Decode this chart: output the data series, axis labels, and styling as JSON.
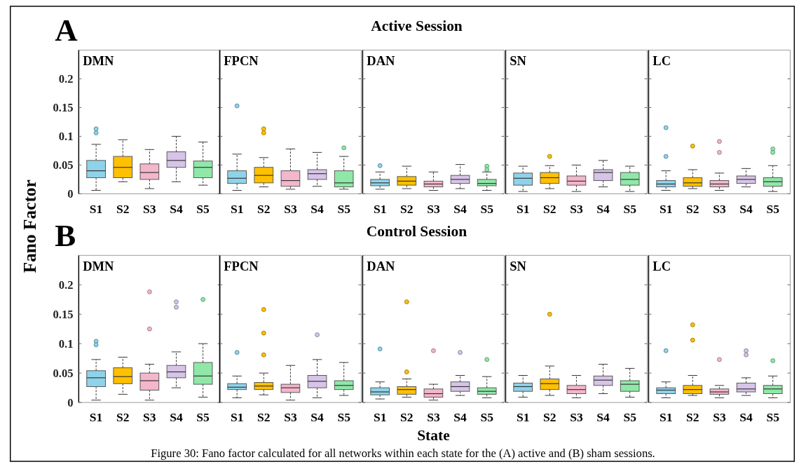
{
  "chart_data": [
    {
      "type": "box",
      "title": "DMN",
      "annotations": [
        "A",
        "Active Session"
      ],
      "ylabel": "Fano Factor",
      "categories": [
        "S1",
        "S2",
        "S3",
        "S4",
        "S5"
      ],
      "colors": [
        "#8fd3ea",
        "#ffc000",
        "#f4b6cc",
        "#d7c4e8",
        "#8fe8a8"
      ],
      "ylim": [
        0,
        0.25
      ],
      "yticks": [
        0,
        0.05,
        0.1,
        0.15,
        0.2
      ],
      "boxes": [
        {
          "low": 0.006,
          "q1": 0.028,
          "median": 0.04,
          "q3": 0.058,
          "high": 0.086,
          "outliers": [
            0.113,
            0.106
          ]
        },
        {
          "low": 0.021,
          "q1": 0.028,
          "median": 0.046,
          "q3": 0.065,
          "high": 0.094
        },
        {
          "low": 0.009,
          "q1": 0.025,
          "median": 0.037,
          "q3": 0.052,
          "high": 0.077
        },
        {
          "low": 0.021,
          "q1": 0.046,
          "median": 0.058,
          "q3": 0.073,
          "high": 0.1
        },
        {
          "low": 0.015,
          "q1": 0.028,
          "median": 0.046,
          "q3": 0.057,
          "high": 0.09
        }
      ]
    },
    {
      "type": "box",
      "title": "FPCN",
      "categories": [
        "S1",
        "S2",
        "S3",
        "S4",
        "S5"
      ],
      "colors": [
        "#8fd3ea",
        "#ffc000",
        "#f4b6cc",
        "#d7c4e8",
        "#8fe8a8"
      ],
      "ylim": [
        0,
        0.25
      ],
      "yticks": [
        0,
        0.05,
        0.1,
        0.15,
        0.2
      ],
      "tick_labels": "x",
      "boxes": [
        {
          "low": 0.006,
          "q1": 0.018,
          "median": 0.027,
          "q3": 0.04,
          "high": 0.069,
          "outliers": [
            0.153
          ]
        },
        {
          "low": 0.012,
          "q1": 0.019,
          "median": 0.032,
          "q3": 0.046,
          "high": 0.063,
          "outliers": [
            0.113,
            0.106
          ]
        },
        {
          "low": 0.008,
          "q1": 0.013,
          "median": 0.023,
          "q3": 0.04,
          "high": 0.078
        },
        {
          "low": 0.013,
          "q1": 0.025,
          "median": 0.035,
          "q3": 0.042,
          "high": 0.072
        },
        {
          "low": 0.008,
          "q1": 0.012,
          "median": 0.019,
          "q3": 0.04,
          "high": 0.065,
          "outliers": [
            0.08
          ]
        }
      ]
    },
    {
      "type": "box",
      "title": "DAN",
      "categories": [
        "S1",
        "S2",
        "S3",
        "S4",
        "S5"
      ],
      "colors": [
        "#8fd3ea",
        "#ffc000",
        "#f4b6cc",
        "#d7c4e8",
        "#8fe8a8"
      ],
      "ylim": [
        0,
        0.25
      ],
      "yticks": [
        0,
        0.05,
        0.1,
        0.15,
        0.2
      ],
      "tick_labels": "x",
      "boxes": [
        {
          "low": 0.008,
          "q1": 0.014,
          "median": 0.019,
          "q3": 0.025,
          "high": 0.038,
          "outliers": [
            0.049
          ]
        },
        {
          "low": 0.009,
          "q1": 0.015,
          "median": 0.022,
          "q3": 0.03,
          "high": 0.048
        },
        {
          "low": 0.006,
          "q1": 0.012,
          "median": 0.017,
          "q3": 0.022,
          "high": 0.038
        },
        {
          "low": 0.009,
          "q1": 0.018,
          "median": 0.025,
          "q3": 0.032,
          "high": 0.051
        },
        {
          "low": 0.006,
          "q1": 0.014,
          "median": 0.018,
          "q3": 0.025,
          "high": 0.038,
          "outliers": [
            0.048,
            0.042
          ]
        }
      ]
    },
    {
      "type": "box",
      "title": "SN",
      "categories": [
        "S1",
        "S2",
        "S3",
        "S4",
        "S5"
      ],
      "colors": [
        "#8fd3ea",
        "#ffc000",
        "#f4b6cc",
        "#d7c4e8",
        "#8fe8a8"
      ],
      "ylim": [
        0,
        0.25
      ],
      "yticks": [
        0,
        0.05,
        0.1,
        0.15,
        0.2
      ],
      "tick_labels": "x",
      "boxes": [
        {
          "low": 0.004,
          "q1": 0.015,
          "median": 0.027,
          "q3": 0.036,
          "high": 0.048
        },
        {
          "low": 0.009,
          "q1": 0.018,
          "median": 0.028,
          "q3": 0.037,
          "high": 0.049,
          "outliers": [
            0.065
          ]
        },
        {
          "low": 0.004,
          "q1": 0.015,
          "median": 0.022,
          "q3": 0.031,
          "high": 0.05
        },
        {
          "low": 0.012,
          "q1": 0.023,
          "median": 0.037,
          "q3": 0.042,
          "high": 0.058
        },
        {
          "low": 0.004,
          "q1": 0.015,
          "median": 0.025,
          "q3": 0.037,
          "high": 0.048
        }
      ]
    },
    {
      "type": "box",
      "title": "LC",
      "categories": [
        "S1",
        "S2",
        "S3",
        "S4",
        "S5"
      ],
      "colors": [
        "#8fd3ea",
        "#ffc000",
        "#f4b6cc",
        "#d7c4e8",
        "#8fe8a8"
      ],
      "ylim": [
        0,
        0.25
      ],
      "yticks": [
        0,
        0.05,
        0.1,
        0.15,
        0.2
      ],
      "tick_labels": "x",
      "boxes": [
        {
          "low": 0.006,
          "q1": 0.012,
          "median": 0.017,
          "q3": 0.023,
          "high": 0.04,
          "outliers": [
            0.115,
            0.065
          ]
        },
        {
          "low": 0.009,
          "q1": 0.013,
          "median": 0.019,
          "q3": 0.028,
          "high": 0.042,
          "outliers": [
            0.083
          ]
        },
        {
          "low": 0.006,
          "q1": 0.012,
          "median": 0.017,
          "q3": 0.023,
          "high": 0.036,
          "outliers": [
            0.091,
            0.072
          ]
        },
        {
          "low": 0.012,
          "q1": 0.018,
          "median": 0.025,
          "q3": 0.031,
          "high": 0.044
        },
        {
          "low": 0.004,
          "q1": 0.013,
          "median": 0.021,
          "q3": 0.028,
          "high": 0.049,
          "outliers": [
            0.078,
            0.072
          ]
        }
      ]
    },
    {
      "type": "box",
      "title": "DMN",
      "annotations": [
        "B",
        "Control Session"
      ],
      "categories": [
        "S1",
        "S2",
        "S3",
        "S4",
        "S5"
      ],
      "colors": [
        "#8fd3ea",
        "#ffc000",
        "#f4b6cc",
        "#d7c4e8",
        "#8fe8a8"
      ],
      "ylim": [
        0,
        0.25
      ],
      "yticks": [
        0,
        0.05,
        0.1,
        0.15,
        0.2
      ],
      "boxes": [
        {
          "low": 0.004,
          "q1": 0.027,
          "median": 0.042,
          "q3": 0.054,
          "high": 0.073,
          "outliers": [
            0.104,
            0.098
          ]
        },
        {
          "low": 0.014,
          "q1": 0.032,
          "median": 0.044,
          "q3": 0.059,
          "high": 0.077
        },
        {
          "low": 0.004,
          "q1": 0.021,
          "median": 0.037,
          "q3": 0.05,
          "high": 0.065,
          "outliers": [
            0.188,
            0.125
          ]
        },
        {
          "low": 0.025,
          "q1": 0.042,
          "median": 0.052,
          "q3": 0.063,
          "high": 0.086,
          "outliers": [
            0.171,
            0.162
          ]
        },
        {
          "low": 0.009,
          "q1": 0.031,
          "median": 0.045,
          "q3": 0.068,
          "high": 0.1,
          "outliers": [
            0.175
          ]
        }
      ]
    },
    {
      "type": "box",
      "title": "FPCN",
      "categories": [
        "S1",
        "S2",
        "S3",
        "S4",
        "S5"
      ],
      "colors": [
        "#8fd3ea",
        "#ffc000",
        "#f4b6cc",
        "#d7c4e8",
        "#8fe8a8"
      ],
      "ylim": [
        0,
        0.25
      ],
      "yticks": [
        0,
        0.05,
        0.1,
        0.15,
        0.2
      ],
      "tick_labels": "x",
      "boxes": [
        {
          "low": 0.008,
          "q1": 0.022,
          "median": 0.026,
          "q3": 0.032,
          "high": 0.045,
          "outliers": [
            0.085
          ]
        },
        {
          "low": 0.013,
          "q1": 0.022,
          "median": 0.028,
          "q3": 0.034,
          "high": 0.05,
          "outliers": [
            0.158,
            0.118,
            0.081
          ]
        },
        {
          "low": 0.004,
          "q1": 0.017,
          "median": 0.025,
          "q3": 0.031,
          "high": 0.063
        },
        {
          "low": 0.008,
          "q1": 0.025,
          "median": 0.036,
          "q3": 0.046,
          "high": 0.073,
          "outliers": [
            0.115
          ]
        },
        {
          "low": 0.012,
          "q1": 0.022,
          "median": 0.029,
          "q3": 0.037,
          "high": 0.068
        }
      ]
    },
    {
      "type": "box",
      "title": "DAN",
      "xlabel": "State",
      "categories": [
        "S1",
        "S2",
        "S3",
        "S4",
        "S5"
      ],
      "colors": [
        "#8fd3ea",
        "#ffc000",
        "#f4b6cc",
        "#d7c4e8",
        "#8fe8a8"
      ],
      "ylim": [
        0,
        0.25
      ],
      "yticks": [
        0,
        0.05,
        0.1,
        0.15,
        0.2
      ],
      "tick_labels": "x",
      "boxes": [
        {
          "low": 0.006,
          "q1": 0.013,
          "median": 0.018,
          "q3": 0.025,
          "high": 0.035,
          "outliers": [
            0.091
          ]
        },
        {
          "low": 0.009,
          "q1": 0.014,
          "median": 0.022,
          "q3": 0.027,
          "high": 0.04,
          "outliers": [
            0.171,
            0.052
          ]
        },
        {
          "low": 0.004,
          "q1": 0.009,
          "median": 0.015,
          "q3": 0.023,
          "high": 0.031,
          "outliers": [
            0.088
          ]
        },
        {
          "low": 0.012,
          "q1": 0.019,
          "median": 0.027,
          "q3": 0.035,
          "high": 0.046,
          "outliers": [
            0.085
          ]
        },
        {
          "low": 0.008,
          "q1": 0.014,
          "median": 0.019,
          "q3": 0.025,
          "high": 0.044,
          "outliers": [
            0.073
          ]
        }
      ]
    },
    {
      "type": "box",
      "title": "SN",
      "categories": [
        "S1",
        "S2",
        "S3",
        "S4",
        "S5"
      ],
      "colors": [
        "#8fd3ea",
        "#ffc000",
        "#f4b6cc",
        "#d7c4e8",
        "#8fe8a8"
      ],
      "ylim": [
        0,
        0.25
      ],
      "yticks": [
        0,
        0.05,
        0.1,
        0.15,
        0.2
      ],
      "tick_labels": "x",
      "boxes": [
        {
          "low": 0.009,
          "q1": 0.019,
          "median": 0.027,
          "q3": 0.033,
          "high": 0.046
        },
        {
          "low": 0.012,
          "q1": 0.022,
          "median": 0.032,
          "q3": 0.04,
          "high": 0.062,
          "outliers": [
            0.15
          ]
        },
        {
          "low": 0.008,
          "q1": 0.015,
          "median": 0.022,
          "q3": 0.029,
          "high": 0.046
        },
        {
          "low": 0.015,
          "q1": 0.029,
          "median": 0.038,
          "q3": 0.045,
          "high": 0.065
        },
        {
          "low": 0.009,
          "q1": 0.019,
          "median": 0.031,
          "q3": 0.037,
          "high": 0.058
        }
      ]
    },
    {
      "type": "box",
      "title": "LC",
      "annotations": [
        "Figure 30: Fano factor calculated for all networks within each state for the (A) active and (B) sham sessions."
      ],
      "categories": [
        "S1",
        "S2",
        "S3",
        "S4",
        "S5"
      ],
      "colors": [
        "#8fd3ea",
        "#ffc000",
        "#f4b6cc",
        "#d7c4e8",
        "#8fe8a8"
      ],
      "ylim": [
        0,
        0.25
      ],
      "yticks": [
        0,
        0.05,
        0.1,
        0.15,
        0.2
      ],
      "tick_labels": "x",
      "boxes": [
        {
          "low": 0.008,
          "q1": 0.015,
          "median": 0.021,
          "q3": 0.025,
          "high": 0.035,
          "outliers": [
            0.088
          ]
        },
        {
          "low": 0.012,
          "q1": 0.015,
          "median": 0.022,
          "q3": 0.029,
          "high": 0.046,
          "outliers": [
            0.132,
            0.106
          ]
        },
        {
          "low": 0.008,
          "q1": 0.014,
          "median": 0.018,
          "q3": 0.023,
          "high": 0.029,
          "outliers": [
            0.073
          ]
        },
        {
          "low": 0.012,
          "q1": 0.018,
          "median": 0.023,
          "q3": 0.033,
          "high": 0.042,
          "outliers": [
            0.088,
            0.081
          ]
        },
        {
          "low": 0.008,
          "q1": 0.015,
          "median": 0.023,
          "q3": 0.029,
          "high": 0.045,
          "outliers": [
            0.071
          ]
        }
      ]
    }
  ]
}
